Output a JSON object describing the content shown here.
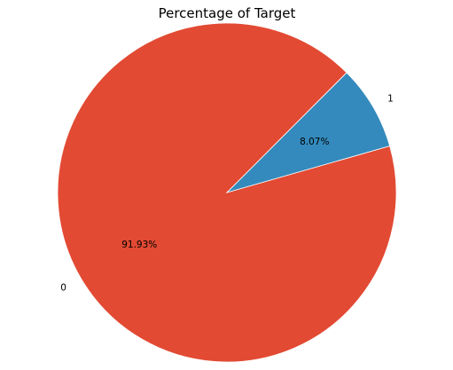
{
  "chart_data": {
    "type": "pie",
    "title": "Percentage of Target",
    "start_angle_deg": 45,
    "direction": "counterclockwise",
    "slices": [
      {
        "label": "0",
        "value": 91.93,
        "pct_label": "91.93%",
        "color": "#e24a33"
      },
      {
        "label": "1",
        "value": 8.07,
        "pct_label": "8.07%",
        "color": "#348abd"
      }
    ],
    "slice_edge_color": "#ffffff"
  }
}
